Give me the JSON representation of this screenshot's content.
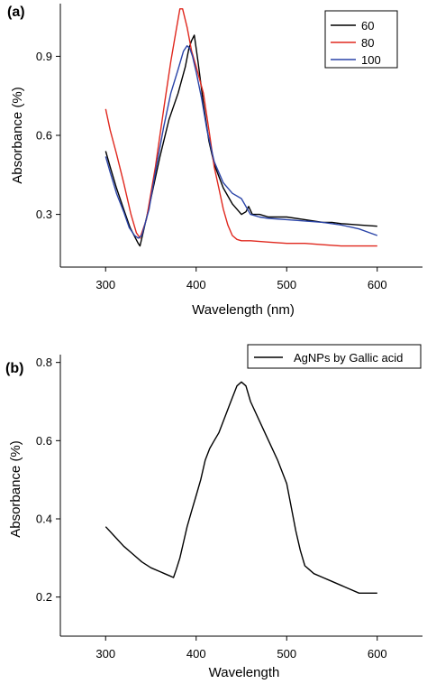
{
  "chart_data": [
    {
      "type": "line",
      "panel_label": "(a)",
      "xlabel": "Wavelength (nm)",
      "ylabel": "Absorbance (%)",
      "xlim": [
        250,
        650
      ],
      "ylim": [
        0.1,
        1.1
      ],
      "xticks": [
        300,
        400,
        500,
        600
      ],
      "yticks": [
        0.3,
        0.6,
        0.9
      ],
      "xtick_labels": [
        "300",
        "400",
        "500",
        "600"
      ],
      "ytick_labels": [
        "0.3",
        "0.6",
        "0.9"
      ],
      "grid": false,
      "legend_position": "top-right",
      "series": [
        {
          "name": "60",
          "color": "#000000",
          "x": [
            300,
            305,
            312,
            320,
            327,
            333,
            336,
            338,
            342,
            350,
            360,
            370,
            380,
            388,
            392,
            395,
            398,
            402,
            408,
            414,
            420,
            430,
            440,
            450,
            455,
            458,
            462,
            470,
            480,
            500,
            520,
            540,
            550,
            560,
            580,
            600
          ],
          "y": [
            0.54,
            0.48,
            0.4,
            0.32,
            0.25,
            0.21,
            0.19,
            0.18,
            0.24,
            0.36,
            0.52,
            0.66,
            0.76,
            0.86,
            0.93,
            0.96,
            0.98,
            0.88,
            0.72,
            0.58,
            0.49,
            0.4,
            0.34,
            0.3,
            0.31,
            0.33,
            0.3,
            0.3,
            0.29,
            0.29,
            0.28,
            0.27,
            0.27,
            0.265,
            0.26,
            0.255
          ]
        },
        {
          "name": "80",
          "color": "#e0281e",
          "x": [
            300,
            305,
            312,
            320,
            328,
            334,
            338,
            345,
            355,
            365,
            372,
            378,
            382,
            385,
            390,
            395,
            400,
            408,
            415,
            420,
            425,
            430,
            435,
            440,
            445,
            450,
            460,
            480,
            500,
            520,
            540,
            560,
            580,
            600
          ],
          "y": [
            0.7,
            0.62,
            0.53,
            0.42,
            0.3,
            0.23,
            0.21,
            0.28,
            0.48,
            0.72,
            0.88,
            1.0,
            1.08,
            1.08,
            1.01,
            0.92,
            0.86,
            0.76,
            0.6,
            0.48,
            0.4,
            0.32,
            0.26,
            0.22,
            0.205,
            0.2,
            0.2,
            0.195,
            0.19,
            0.19,
            0.185,
            0.18,
            0.18,
            0.18
          ]
        },
        {
          "name": "100",
          "color": "#2a44a8",
          "x": [
            300,
            305,
            312,
            320,
            326,
            332,
            336,
            340,
            348,
            356,
            364,
            372,
            380,
            386,
            390,
            393,
            396,
            400,
            406,
            412,
            420,
            430,
            440,
            450,
            455,
            460,
            470,
            480,
            500,
            520,
            540,
            560,
            580,
            600
          ],
          "y": [
            0.52,
            0.46,
            0.38,
            0.31,
            0.25,
            0.22,
            0.21,
            0.22,
            0.32,
            0.48,
            0.63,
            0.76,
            0.85,
            0.92,
            0.94,
            0.93,
            0.9,
            0.84,
            0.74,
            0.62,
            0.5,
            0.42,
            0.38,
            0.36,
            0.33,
            0.3,
            0.29,
            0.285,
            0.28,
            0.275,
            0.27,
            0.26,
            0.245,
            0.22
          ]
        }
      ]
    },
    {
      "type": "line",
      "panel_label": "(b)",
      "xlabel": "Wavelength",
      "ylabel": "Absorbance (%)",
      "xlim": [
        250,
        650
      ],
      "ylim": [
        0.1,
        0.82
      ],
      "xticks": [
        300,
        400,
        500,
        600
      ],
      "yticks": [
        0.2,
        0.4,
        0.6,
        0.8
      ],
      "xtick_labels": [
        "300",
        "400",
        "500",
        "600"
      ],
      "ytick_labels": [
        "0.2",
        "0.4",
        "0.6",
        "0.8"
      ],
      "grid": false,
      "legend_position": "top-right",
      "series": [
        {
          "name": "AgNPs by Gallic acid",
          "color": "#000000",
          "x": [
            300,
            310,
            320,
            330,
            340,
            350,
            360,
            365,
            370,
            375,
            378,
            382,
            386,
            390,
            395,
            400,
            405,
            410,
            415,
            420,
            425,
            430,
            435,
            440,
            445,
            450,
            455,
            460,
            470,
            480,
            490,
            500,
            505,
            510,
            515,
            520,
            525,
            530,
            540,
            550,
            560,
            570,
            580,
            590,
            600
          ],
          "y": [
            0.38,
            0.355,
            0.33,
            0.31,
            0.29,
            0.275,
            0.265,
            0.26,
            0.255,
            0.25,
            0.27,
            0.3,
            0.34,
            0.38,
            0.42,
            0.46,
            0.5,
            0.55,
            0.58,
            0.6,
            0.62,
            0.65,
            0.68,
            0.71,
            0.74,
            0.75,
            0.74,
            0.7,
            0.65,
            0.6,
            0.55,
            0.49,
            0.43,
            0.37,
            0.32,
            0.28,
            0.27,
            0.26,
            0.25,
            0.24,
            0.23,
            0.22,
            0.21,
            0.21,
            0.21
          ]
        }
      ]
    }
  ]
}
